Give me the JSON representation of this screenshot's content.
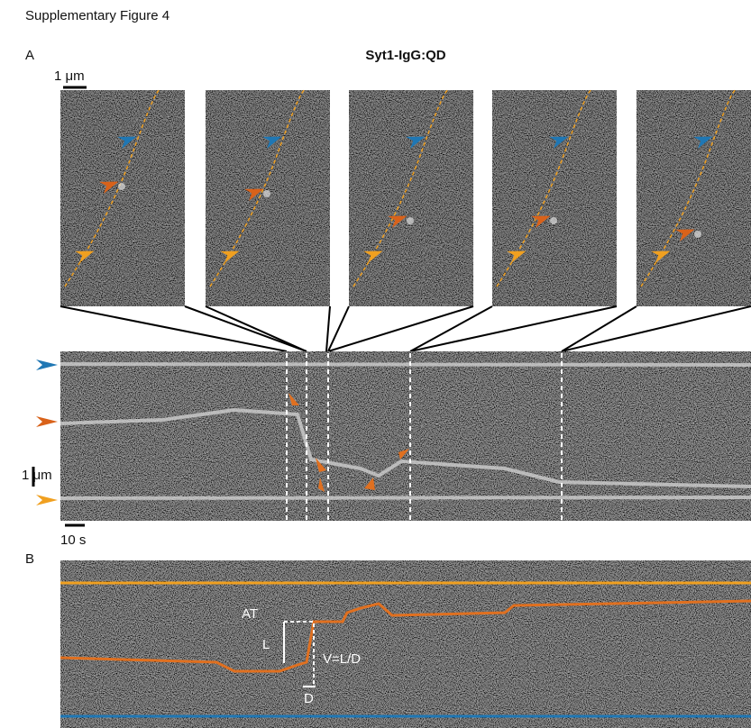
{
  "header": {
    "title": "Supplementary Figure 4"
  },
  "panel_a": {
    "label": "A",
    "title": "Syt1-IgG:QD",
    "scale_bar_space": "1 μm",
    "scale_bar_kymo_space": "1 μm",
    "scale_bar_time": "10 s"
  },
  "panel_b": {
    "label": "B",
    "annotations": {
      "at": "AT",
      "l": "L",
      "v": "V=L/D",
      "d": "D"
    }
  }
}
